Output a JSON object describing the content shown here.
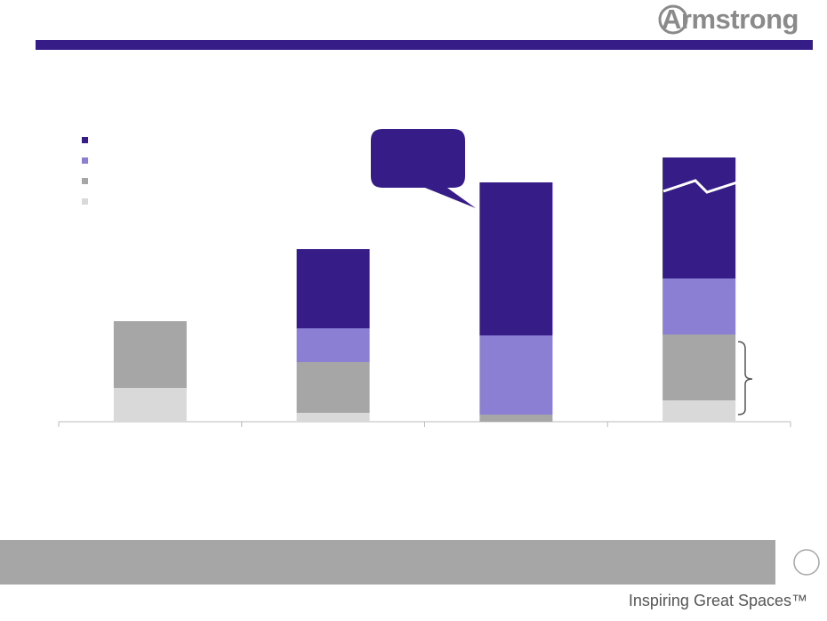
{
  "logo": "Armstrong",
  "tagline": "Inspiring Great Spaces™",
  "chart_data": {
    "type": "bar",
    "stacked": true,
    "categories": [
      null,
      null,
      null,
      null
    ],
    "series": [
      {
        "color": "#d9d9d9",
        "values": [
          38,
          10,
          0,
          24
        ]
      },
      {
        "color": "#a6a6a6",
        "values": [
          75,
          57,
          8,
          74
        ]
      },
      {
        "color": "#8b7fd4",
        "values": [
          0,
          38,
          89,
          63
        ]
      },
      {
        "color": "#361c87",
        "values": [
          0,
          89,
          172,
          136
        ]
      }
    ]
  }
}
